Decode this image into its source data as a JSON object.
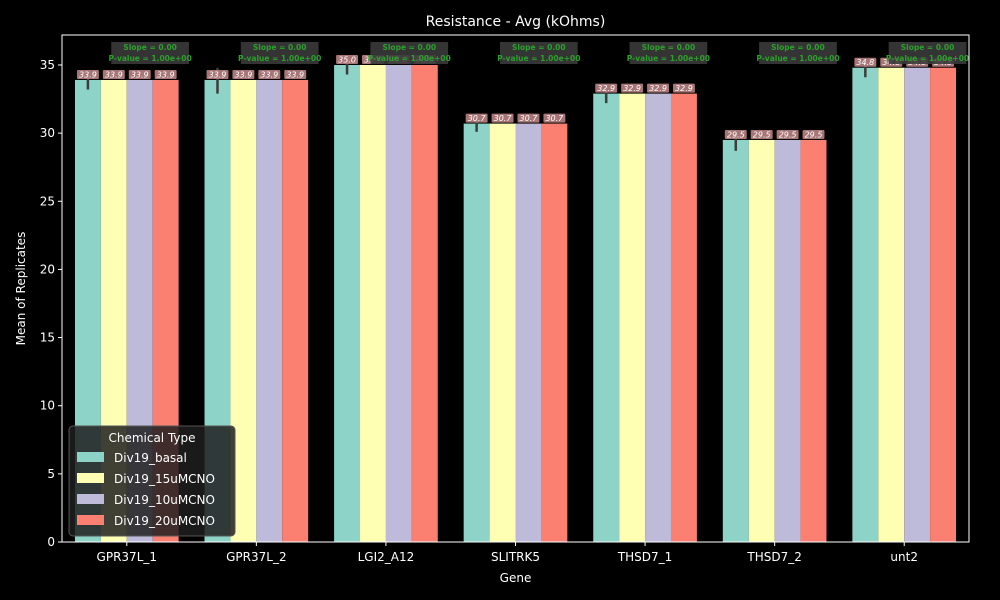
{
  "chart_data": {
    "type": "bar",
    "title": "Resistance - Avg (kOhms)",
    "xlabel": "Gene",
    "ylabel": "Mean of Replicates",
    "ylim": [
      0,
      37.2
    ],
    "yticks": [
      0,
      5,
      10,
      15,
      20,
      25,
      30,
      35
    ],
    "categories": [
      "GPR37L_1",
      "GPR37L_2",
      "LGI2_A12",
      "SLITRK5",
      "THSD7_1",
      "THSD7_2",
      "unt2"
    ],
    "series": [
      {
        "name": "Div19_basal",
        "color": "#8dd3c7",
        "values": [
          33.9,
          33.9,
          35.0,
          30.7,
          32.9,
          29.5,
          34.8
        ],
        "error": [
          [
            33.2,
            34.1
          ],
          [
            32.9,
            34.8
          ],
          [
            34.3,
            35.5
          ],
          [
            30.1,
            31.0
          ],
          [
            32.2,
            33.2
          ],
          [
            28.7,
            30.0
          ],
          [
            34.1,
            35.3
          ]
        ]
      },
      {
        "name": "Div19_15uMCNO",
        "color": "#ffffb3",
        "values": [
          33.9,
          33.9,
          35.0,
          30.7,
          32.9,
          29.5,
          34.8
        ]
      },
      {
        "name": "Div19_10uMCNO",
        "color": "#bebada",
        "values": [
          33.9,
          33.9,
          35.0,
          30.7,
          32.9,
          29.5,
          34.8
        ]
      },
      {
        "name": "Div19_20uMCNO",
        "color": "#fb8072",
        "values": [
          33.9,
          33.9,
          35.0,
          30.7,
          32.9,
          29.5,
          34.8
        ]
      }
    ],
    "bar_labels": [
      [
        "33.9",
        "33.9",
        "33.9",
        "33.9"
      ],
      [
        "33.9",
        "33.9",
        "33.9",
        "33.9"
      ],
      [
        "35.0",
        "35.0",
        "35.0",
        "35.0"
      ],
      [
        "30.7",
        "30.7",
        "30.7",
        "30.7"
      ],
      [
        "32.9",
        "32.9",
        "32.9",
        "32.9"
      ],
      [
        "29.5",
        "29.5",
        "29.5",
        "29.5"
      ],
      [
        "34.8",
        "34.8",
        "34.8",
        "34.8"
      ]
    ],
    "annotations": [
      {
        "line1": "Slope = 0.00",
        "line2": "P-value = 1.00e+00"
      },
      {
        "line1": "Slope = 0.00",
        "line2": "P-value = 1.00e+00"
      },
      {
        "line1": "Slope = 0.00",
        "line2": "P-value = 1.00e+00"
      },
      {
        "line1": "Slope = 0.00",
        "line2": "P-value = 1.00e+00"
      },
      {
        "line1": "Slope = 0.00",
        "line2": "P-value = 1.00e+00"
      },
      {
        "line1": "Slope = 0.00",
        "line2": "P-value = 1.00e+00"
      },
      {
        "line1": "Slope = 0.00",
        "line2": "P-value = 1.00e+00"
      }
    ],
    "legend": {
      "title": "Chemical Type",
      "position": "lower-left"
    },
    "grid": false,
    "colors": {
      "background": "#000000",
      "axes": "#ffffff",
      "annotation_box": "#3a3a3a",
      "annotation_text": "#2ca02c",
      "errorbar": "#3c3c3c",
      "bar_label_box": "#c48a8a"
    }
  }
}
